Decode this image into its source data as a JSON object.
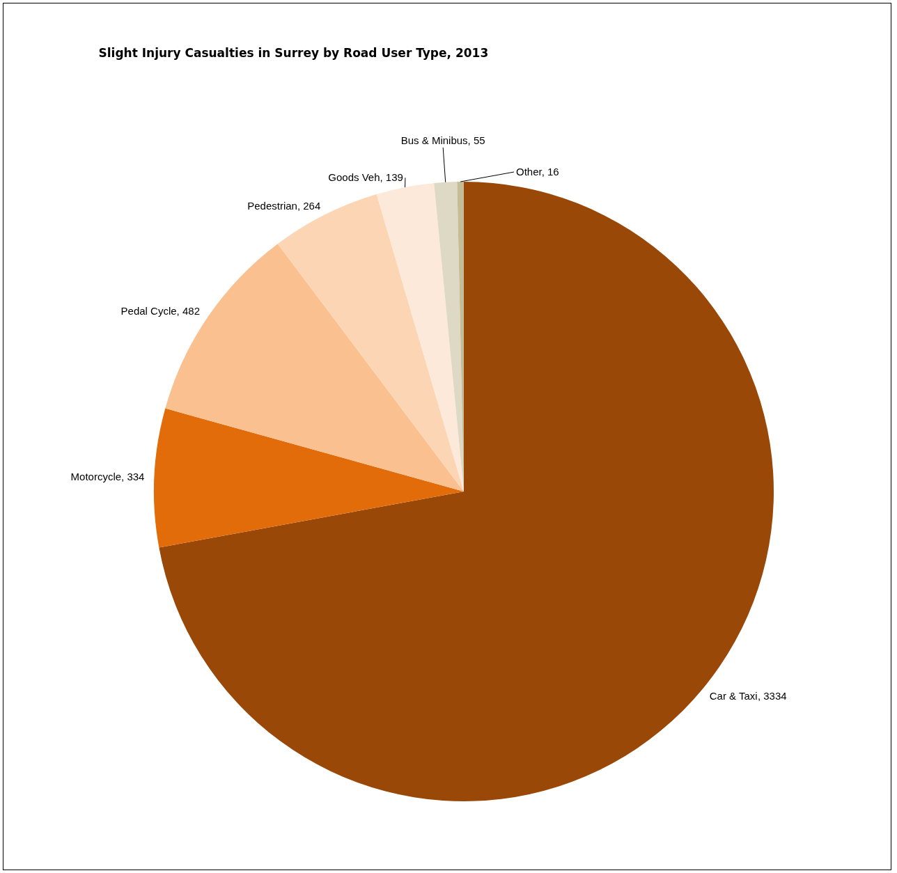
{
  "chart_data": {
    "type": "pie",
    "title": "Slight Injury Casualties in Surrey by Road User Type, 2013",
    "categories": [
      "Car & Taxi",
      "Motorcycle",
      "Pedal Cycle",
      "Pedestrian",
      "Goods Veh",
      "Bus & Minibus",
      "Other"
    ],
    "values": [
      3334,
      334,
      482,
      264,
      139,
      55,
      16
    ],
    "colors": [
      "#994807",
      "#e36c0a",
      "#fac090",
      "#fcd5b5",
      "#fde9d9",
      "#ddd9c4",
      "#c4bd97"
    ],
    "value_labels": [
      ", 3334",
      ", 334",
      ", 482",
      ", 264",
      ", 139",
      ", 55",
      ", 16"
    ],
    "legend": false
  }
}
